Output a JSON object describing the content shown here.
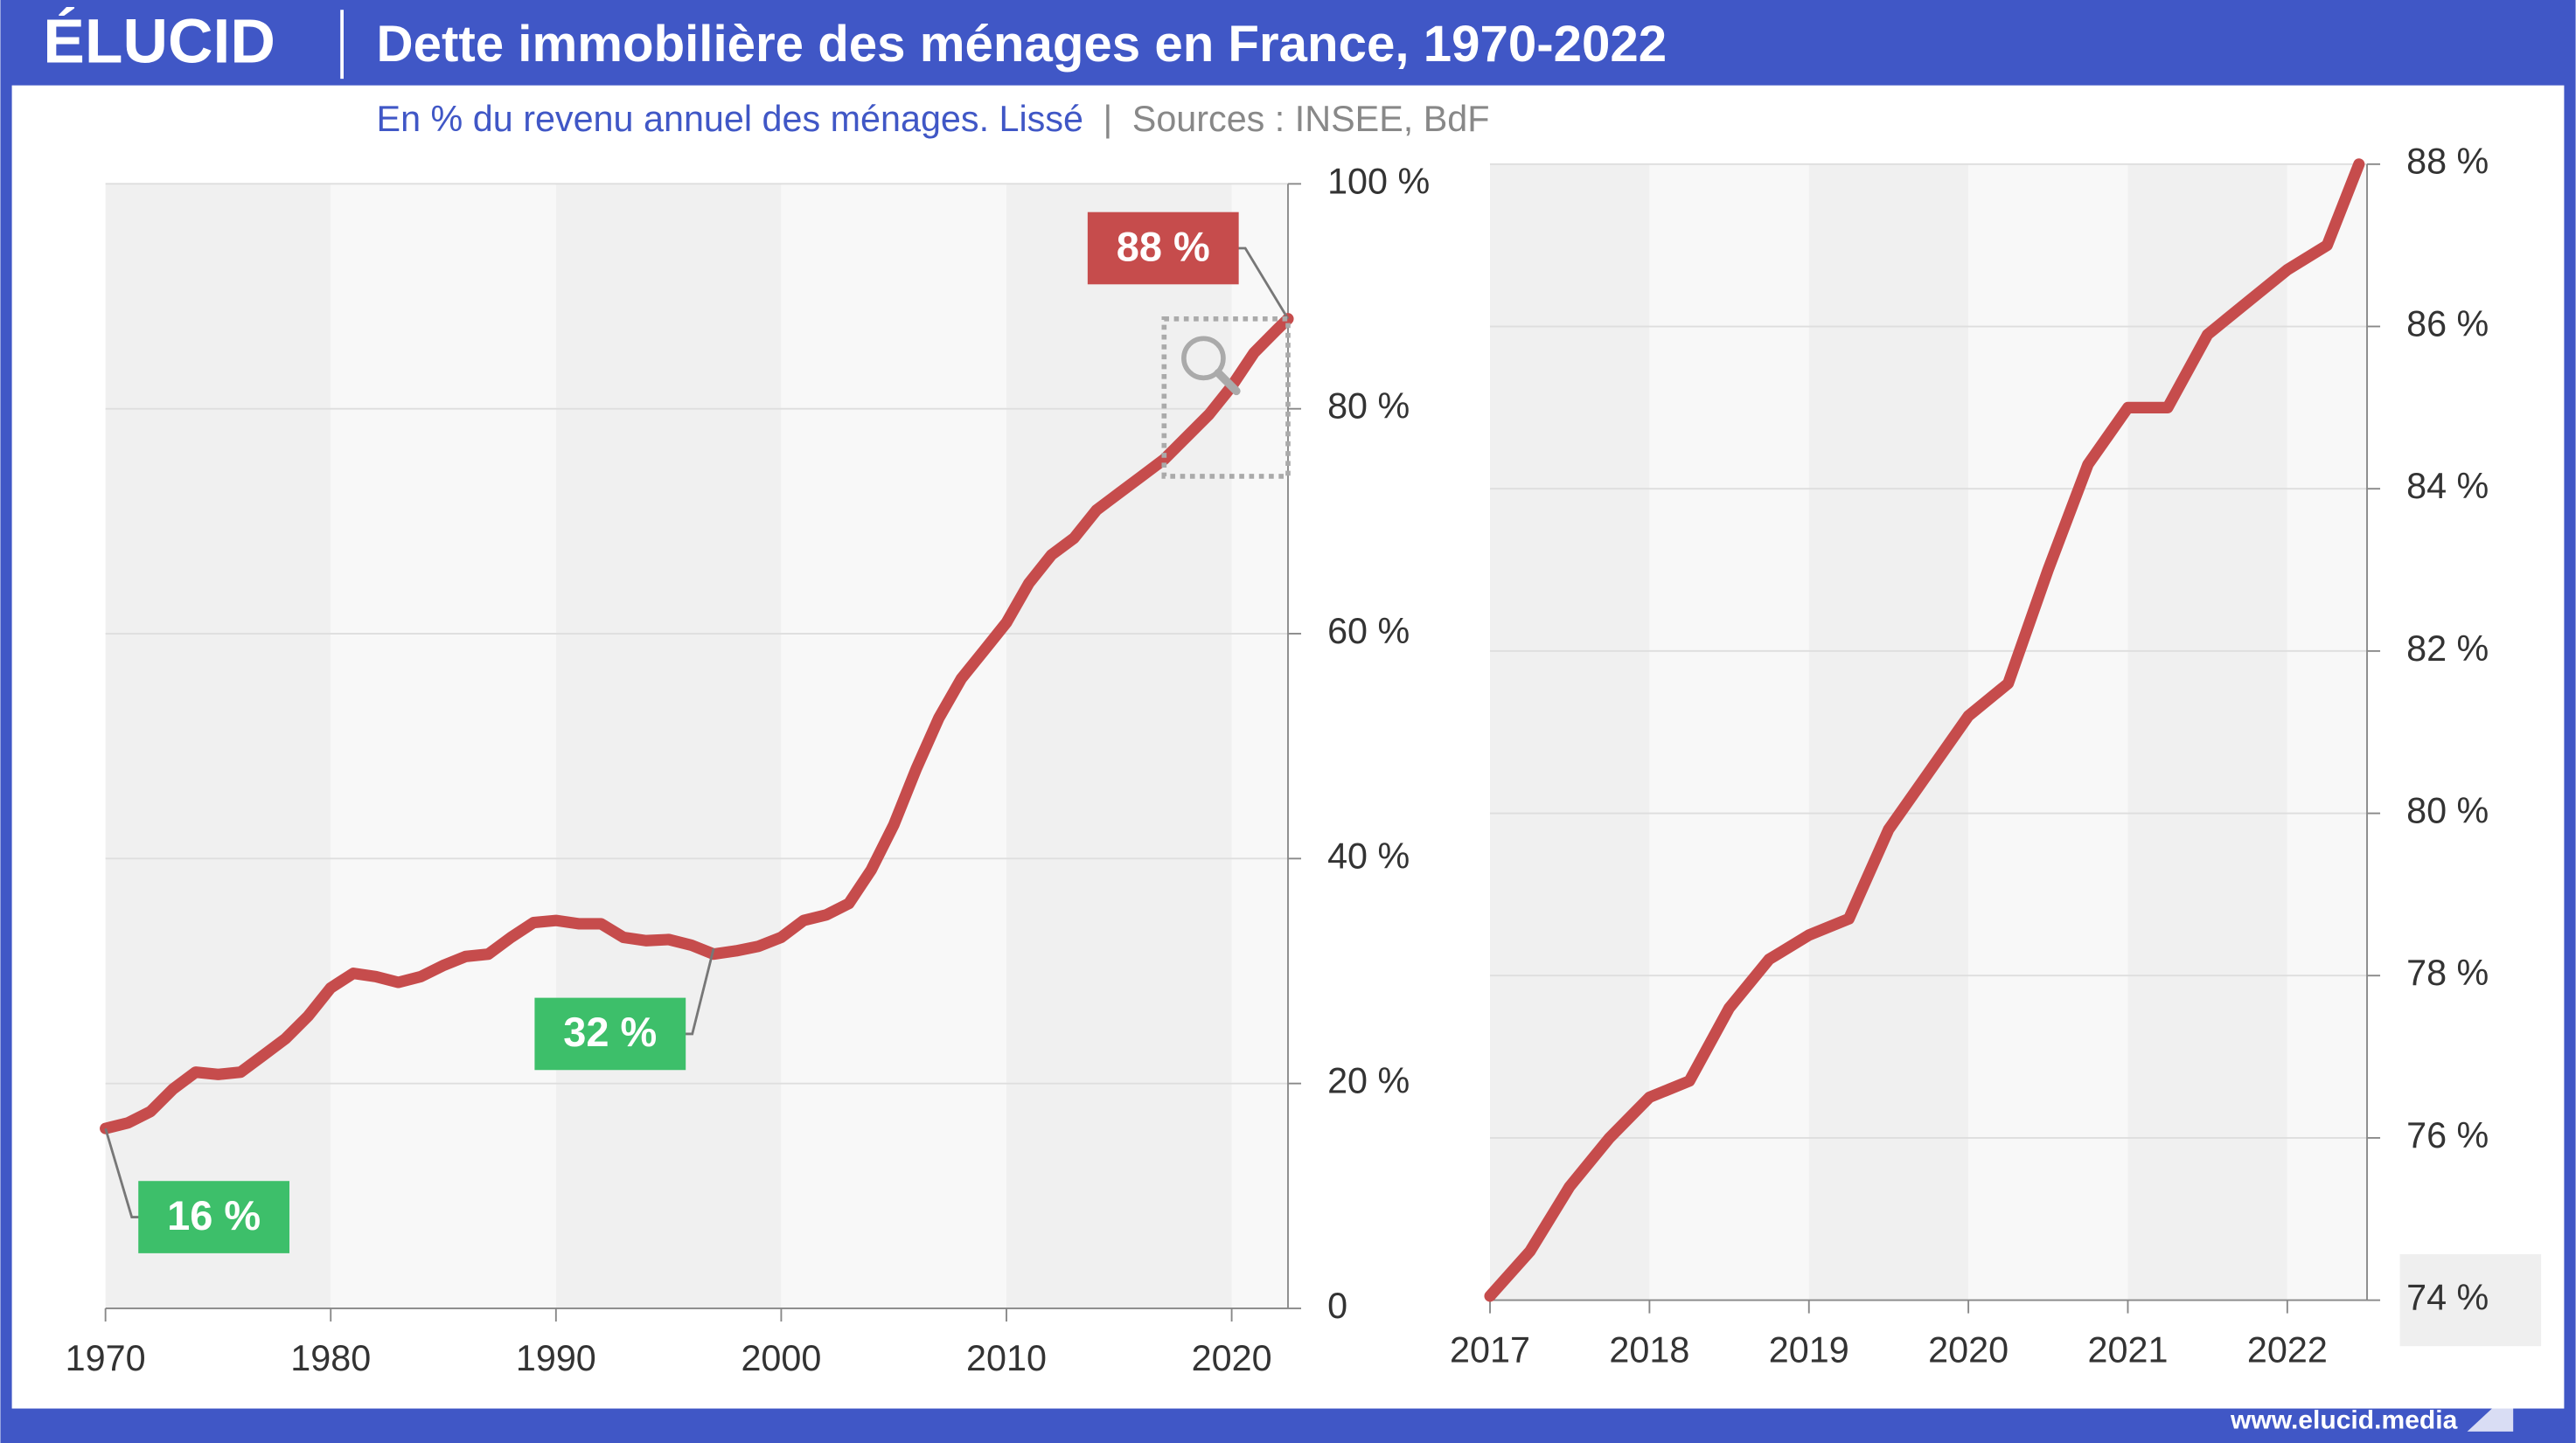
{
  "header": {
    "brand": "ÉLUCID",
    "title": "Dette immobilière des ménages en France, 1970-2022",
    "subtitle": "En % du revenu annuel des ménages. Lissé",
    "sources": "Sources : INSEE, BdF",
    "footer": "www.elucid.media"
  },
  "chart_data": [
    {
      "type": "line",
      "color": "#c64c4c",
      "x": [
        1970,
        1971,
        1972,
        1973,
        1974,
        1975,
        1976,
        1977,
        1978,
        1979,
        1980,
        1981,
        1982,
        1983,
        1984,
        1985,
        1986,
        1987,
        1988,
        1989,
        1990,
        1991,
        1992,
        1993,
        1994,
        1995,
        1996,
        1997,
        1998,
        1999,
        2000,
        2001,
        2002,
        2003,
        2004,
        2005,
        2006,
        2007,
        2008,
        2009,
        2010,
        2011,
        2012,
        2013,
        2014,
        2015,
        2016,
        2017,
        2018,
        2019,
        2020,
        2021,
        2022,
        2022.5
      ],
      "values": [
        16,
        16.5,
        17.5,
        19.5,
        21,
        20.8,
        21,
        22.5,
        24,
        26,
        28.5,
        29.8,
        29.5,
        29,
        29.5,
        30.5,
        31.3,
        31.5,
        33,
        34.3,
        34.5,
        34.2,
        34.2,
        33,
        32.7,
        32.8,
        32.3,
        31.5,
        31.8,
        32.2,
        33,
        34.5,
        35,
        36,
        39,
        43,
        48,
        52.5,
        56,
        58.5,
        61,
        64.5,
        67,
        68.5,
        71,
        72.5,
        74,
        75.5,
        77.5,
        79.5,
        82,
        85,
        87,
        88
      ],
      "xlim": [
        1970,
        2022.5
      ],
      "xticks": [
        1970,
        1980,
        1990,
        2000,
        2010,
        2020
      ],
      "ylim": [
        0,
        100
      ],
      "yticks": [
        0,
        {
          "value": 20,
          "label": "20 %"
        },
        {
          "value": 40,
          "label": "40 %"
        },
        {
          "value": 60,
          "label": "60 %"
        },
        {
          "value": 80,
          "label": "80 %"
        },
        {
          "value": 100,
          "label": "100 %"
        }
      ],
      "grid": true,
      "annotations": [
        {
          "x": 2022.5,
          "y": 88,
          "label": "88 %",
          "color": "#c64c4c"
        },
        {
          "x": 1997,
          "y": 32,
          "label": "32 %",
          "color": "#3dbf6a"
        },
        {
          "x": 1970,
          "y": 16,
          "label": "16 %",
          "color": "#3dbf6a"
        }
      ]
    },
    {
      "type": "line",
      "color": "#c64c4c",
      "x": [
        2017,
        2017.25,
        2017.5,
        2017.75,
        2018,
        2018.25,
        2018.5,
        2018.75,
        2019,
        2019.25,
        2019.5,
        2019.75,
        2020,
        2020.25,
        2020.5,
        2020.75,
        2021,
        2021.25,
        2021.5,
        2021.75,
        2022,
        2022.25,
        2022.45
      ],
      "values": [
        74.05,
        74.6,
        75.4,
        76,
        76.5,
        76.7,
        77.6,
        78.2,
        78.5,
        78.7,
        79.8,
        80.5,
        81.2,
        81.6,
        83,
        84.3,
        85,
        85,
        85.9,
        86.3,
        86.7,
        87,
        88
      ],
      "xlim": [
        2017,
        2022.5
      ],
      "xticks": [
        2017,
        2018,
        2019,
        2020,
        2021,
        2022
      ],
      "ylim": [
        74,
        88
      ],
      "yticks": [
        {
          "value": 74,
          "label": "74 %"
        },
        {
          "value": 76,
          "label": "76 %"
        },
        {
          "value": 78,
          "label": "78 %"
        },
        {
          "value": 80,
          "label": "80 %"
        },
        {
          "value": 82,
          "label": "82 %"
        },
        {
          "value": 84,
          "label": "84 %"
        },
        {
          "value": 86,
          "label": "86 %"
        },
        {
          "value": 88,
          "label": "88 %"
        }
      ],
      "grid": true
    }
  ]
}
